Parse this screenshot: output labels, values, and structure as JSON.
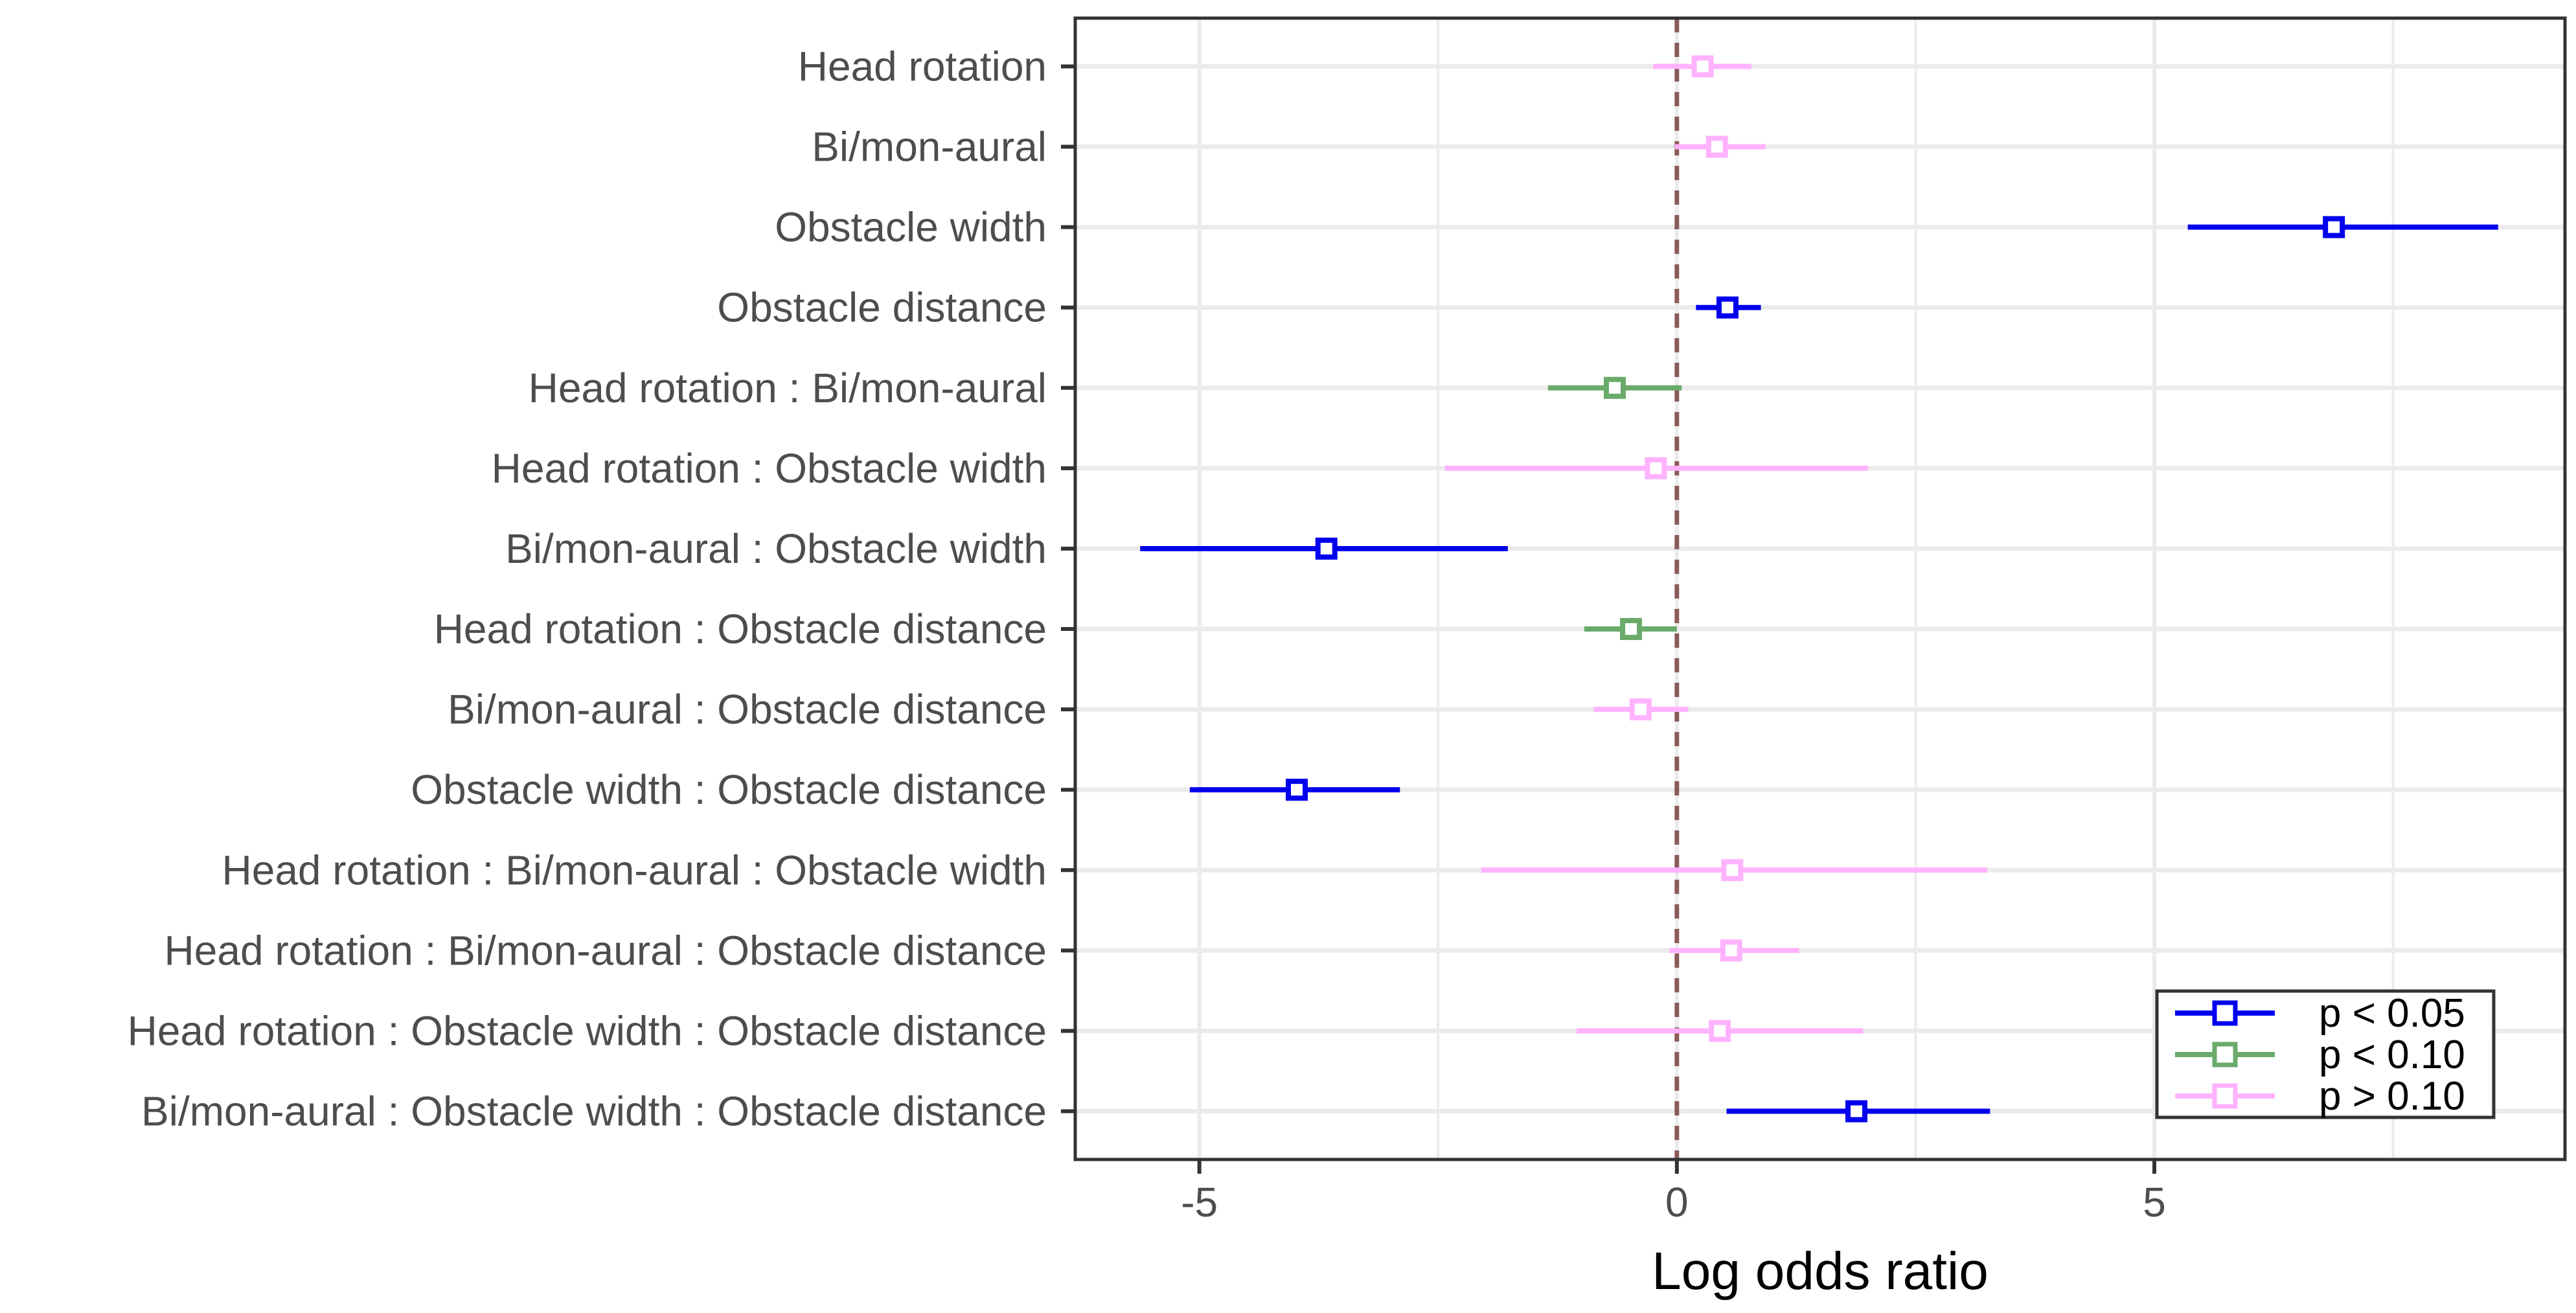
{
  "chart_data": {
    "type": "forest",
    "title": "",
    "xlabel": "Log odds ratio",
    "ylabel": "",
    "xlim": [
      -6.3,
      9.3
    ],
    "xticks": [
      -5,
      0,
      5
    ],
    "xtick_labels": [
      "-5",
      "0",
      "5"
    ],
    "grid": true,
    "reference_line": {
      "x": 0,
      "style": "dashed",
      "color": "#8b5a5a"
    },
    "legend_position": "bottom-right",
    "groups": [
      {
        "key": "sig05",
        "label": "p < 0.05",
        "color": "#0000ee"
      },
      {
        "key": "sig10",
        "label": "p < 0.10",
        "color": "#6aaa6a"
      },
      {
        "key": "ns",
        "label": "p > 0.10",
        "color": "#ffb3ff"
      }
    ],
    "rows": [
      {
        "label": "Head rotation",
        "estimate": 0.27,
        "lower": -0.25,
        "upper": 0.78,
        "group": "ns"
      },
      {
        "label": "Bi/mon-aural",
        "estimate": 0.42,
        "lower": -0.02,
        "upper": 0.93,
        "group": "ns"
      },
      {
        "label": "Obstacle width",
        "estimate": 6.88,
        "lower": 5.35,
        "upper": 8.6,
        "group": "sig05"
      },
      {
        "label": "Obstacle distance",
        "estimate": 0.53,
        "lower": 0.2,
        "upper": 0.88,
        "group": "sig05"
      },
      {
        "label": "Head rotation : Bi/mon-aural",
        "estimate": -0.65,
        "lower": -1.35,
        "upper": 0.05,
        "group": "sig10"
      },
      {
        "label": "Head rotation : Obstacle width",
        "estimate": -0.22,
        "lower": -2.43,
        "upper": 2.0,
        "group": "ns"
      },
      {
        "label": "Bi/mon-aural : Obstacle width",
        "estimate": -3.67,
        "lower": -5.62,
        "upper": -1.77,
        "group": "sig05"
      },
      {
        "label": "Head rotation : Obstacle distance",
        "estimate": -0.48,
        "lower": -0.97,
        "upper": 0.0,
        "group": "sig10"
      },
      {
        "label": "Bi/mon-aural : Obstacle distance",
        "estimate": -0.38,
        "lower": -0.87,
        "upper": 0.12,
        "group": "ns"
      },
      {
        "label": "Obstacle width : Obstacle distance",
        "estimate": -3.98,
        "lower": -5.1,
        "upper": -2.9,
        "group": "sig05"
      },
      {
        "label": "Head rotation : Bi/mon-aural : Obstacle width",
        "estimate": 0.58,
        "lower": -2.05,
        "upper": 3.25,
        "group": "ns"
      },
      {
        "label": "Head rotation : Bi/mon-aural : Obstacle distance",
        "estimate": 0.57,
        "lower": -0.08,
        "upper": 1.28,
        "group": "ns"
      },
      {
        "label": "Head rotation : Obstacle width : Obstacle distance",
        "estimate": 0.45,
        "lower": -1.05,
        "upper": 1.95,
        "group": "ns"
      },
      {
        "label": "Bi/mon-aural : Obstacle width : Obstacle distance",
        "estimate": 1.88,
        "lower": 0.52,
        "upper": 3.28,
        "group": "sig05"
      }
    ]
  }
}
